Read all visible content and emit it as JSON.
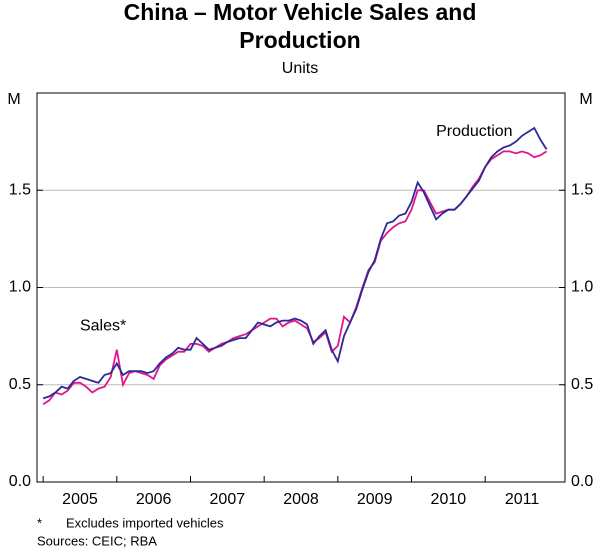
{
  "chart_data": {
    "type": "line",
    "title": [
      "China – Motor Vehicle Sales and",
      "Production"
    ],
    "subtitle": "Units",
    "y_unit": "M",
    "notes": [
      "*",
      "Excludes imported vehicles",
      "Sources: CEIC; RBA"
    ],
    "x": [
      "2005-01",
      "2005-02",
      "2005-03",
      "2005-04",
      "2005-05",
      "2005-06",
      "2005-07",
      "2005-08",
      "2005-09",
      "2005-10",
      "2005-11",
      "2005-12",
      "2006-01",
      "2006-02",
      "2006-03",
      "2006-04",
      "2006-05",
      "2006-06",
      "2006-07",
      "2006-08",
      "2006-09",
      "2006-10",
      "2006-11",
      "2006-12",
      "2007-01",
      "2007-02",
      "2007-03",
      "2007-04",
      "2007-05",
      "2007-06",
      "2007-07",
      "2007-08",
      "2007-09",
      "2007-10",
      "2007-11",
      "2007-12",
      "2008-01",
      "2008-02",
      "2008-03",
      "2008-04",
      "2008-05",
      "2008-06",
      "2008-07",
      "2008-08",
      "2008-09",
      "2008-10",
      "2008-11",
      "2008-12",
      "2009-01",
      "2009-02",
      "2009-03",
      "2009-04",
      "2009-05",
      "2009-06",
      "2009-07",
      "2009-08",
      "2009-09",
      "2009-10",
      "2009-11",
      "2009-12",
      "2010-01",
      "2010-02",
      "2010-03",
      "2010-04",
      "2010-05",
      "2010-06",
      "2010-07",
      "2010-08",
      "2010-09",
      "2010-10",
      "2010-11",
      "2010-12",
      "2011-01",
      "2011-02",
      "2011-03",
      "2011-04",
      "2011-05",
      "2011-06",
      "2011-07",
      "2011-08",
      "2011-09",
      "2011-10",
      "2011-11"
    ],
    "series": [
      {
        "name": "Production",
        "color": "#2b2b96",
        "label_at": [
          "2010-05",
          1.8
        ],
        "values": [
          0.43,
          0.44,
          0.46,
          0.49,
          0.48,
          0.52,
          0.54,
          0.53,
          0.52,
          0.51,
          0.55,
          0.56,
          0.61,
          0.55,
          0.57,
          0.57,
          0.57,
          0.56,
          0.57,
          0.61,
          0.64,
          0.66,
          0.69,
          0.68,
          0.68,
          0.74,
          0.71,
          0.68,
          0.69,
          0.7,
          0.72,
          0.73,
          0.74,
          0.74,
          0.78,
          0.82,
          0.81,
          0.8,
          0.82,
          0.83,
          0.83,
          0.84,
          0.83,
          0.81,
          0.71,
          0.75,
          0.78,
          0.68,
          0.62,
          0.75,
          0.82,
          0.89,
          0.99,
          1.08,
          1.14,
          1.25,
          1.33,
          1.34,
          1.37,
          1.38,
          1.44,
          1.54,
          1.49,
          1.42,
          1.35,
          1.38,
          1.4,
          1.4,
          1.43,
          1.47,
          1.51,
          1.55,
          1.62,
          1.67,
          1.7,
          1.72,
          1.73,
          1.75,
          1.78,
          1.8,
          1.82,
          1.76,
          1.71
        ]
      },
      {
        "name": "Sales*",
        "color": "#e0168c",
        "label_at": [
          "2005-07",
          0.8
        ],
        "values": [
          0.4,
          0.42,
          0.46,
          0.45,
          0.47,
          0.51,
          0.51,
          0.49,
          0.46,
          0.48,
          0.49,
          0.54,
          0.68,
          0.5,
          0.56,
          0.57,
          0.56,
          0.55,
          0.53,
          0.6,
          0.63,
          0.65,
          0.67,
          0.67,
          0.71,
          0.71,
          0.7,
          0.67,
          0.69,
          0.71,
          0.72,
          0.74,
          0.75,
          0.76,
          0.78,
          0.8,
          0.82,
          0.84,
          0.84,
          0.8,
          0.82,
          0.83,
          0.81,
          0.79,
          0.72,
          0.74,
          0.77,
          0.67,
          0.7,
          0.85,
          0.82,
          0.9,
          1.0,
          1.09,
          1.13,
          1.24,
          1.28,
          1.31,
          1.33,
          1.34,
          1.4,
          1.5,
          1.5,
          1.44,
          1.38,
          1.39,
          1.4,
          1.4,
          1.43,
          1.47,
          1.52,
          1.56,
          1.62,
          1.66,
          1.68,
          1.7,
          1.7,
          1.69,
          1.7,
          1.69,
          1.67,
          1.68,
          1.7
        ]
      }
    ],
    "xlim": [
      "2004-12",
      "2012-02"
    ],
    "xticks": [
      2005,
      2006,
      2007,
      2008,
      2009,
      2010,
      2011
    ],
    "ylim": [
      0,
      2
    ],
    "yticks": [
      {
        "value": 0,
        "label": "0.0"
      },
      0.5,
      {
        "value": 1,
        "label": "1.0"
      },
      1.5
    ],
    "grid": true
  }
}
